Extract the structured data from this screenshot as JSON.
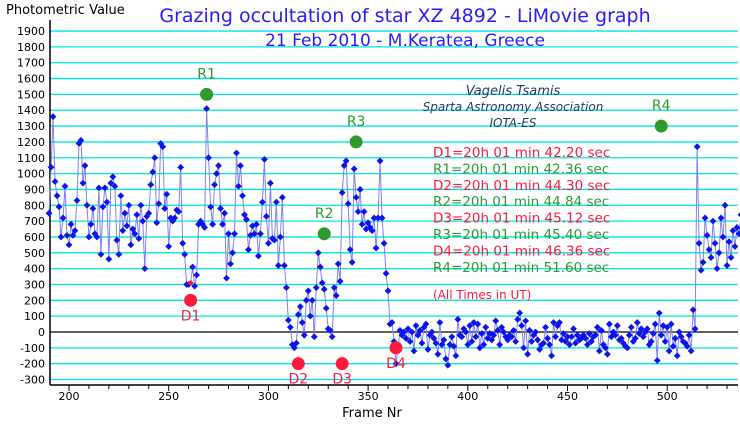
{
  "chart_data": {
    "type": "scatter",
    "title": "Grazing occultation of star XZ 4892 - LiMovie graph",
    "subtitle": "21 Feb 2010 - M.Keratea, Greece",
    "xlabel": "Frame Nr",
    "ylabel": "Photometric Value",
    "xlim": [
      190,
      534
    ],
    "ylim": [
      -330,
      1950
    ],
    "yticks": [
      -300,
      -200,
      -100,
      0,
      100,
      200,
      300,
      400,
      500,
      600,
      700,
      800,
      900,
      1000,
      1100,
      1200,
      1300,
      1400,
      1500,
      1600,
      1700,
      1800,
      1900
    ],
    "xticks": [
      200,
      250,
      300,
      350,
      400,
      450,
      500
    ],
    "grid": true,
    "x_start": 190,
    "values": [
      750,
      1040,
      1360,
      950,
      860,
      790,
      600,
      720,
      920,
      610,
      550,
      680,
      610,
      640,
      830,
      1190,
      1210,
      940,
      1050,
      800,
      600,
      680,
      780,
      620,
      600,
      910,
      490,
      790,
      910,
      820,
      460,
      940,
      980,
      920,
      580,
      490,
      860,
      640,
      750,
      670,
      800,
      550,
      650,
      620,
      740,
      590,
      800,
      700,
      400,
      730,
      750,
      930,
      1010,
      1100,
      690,
      810,
      1190,
      1170,
      780,
      870,
      540,
      720,
      700,
      720,
      770,
      760,
      1040,
      560,
      490,
      300,
      300,
      310,
      410,
      290,
      360,
      680,
      700,
      680,
      660,
      1410,
      1100,
      790,
      680,
      930,
      1000,
      1050,
      780,
      680,
      750,
      340,
      620,
      430,
      500,
      620,
      1130,
      920,
      1050,
      860,
      740,
      710,
      520,
      610,
      670,
      620,
      680,
      480,
      620,
      820,
      1090,
      730,
      560,
      940,
      590,
      580,
      820,
      420,
      600,
      850,
      420,
      280,
      75,
      30,
      -80,
      -100,
      -70,
      110,
      160,
      60,
      -20,
      200,
      260,
      100,
      200,
      -30,
      280,
      500,
      410,
      310,
      270,
      150,
      20,
      10,
      -30,
      280,
      230,
      430,
      320,
      880,
      1050,
      1080,
      810,
      520,
      440,
      1030,
      850,
      760,
      900,
      680,
      760,
      650,
      690,
      660,
      640,
      720,
      530,
      720,
      1080,
      720,
      560,
      370,
      260,
      50,
      60,
      -60,
      -200,
      -100,
      10,
      -20,
      0,
      -40,
      20,
      -60,
      0,
      -120,
      40,
      -20,
      10,
      -70,
      30,
      50,
      -110,
      -20,
      0,
      -40,
      -70,
      -140,
      60,
      -80,
      -50,
      -170,
      -210,
      -80,
      -30,
      -90,
      -150,
      80,
      -20,
      -30,
      20,
      0,
      -80,
      40,
      -60,
      60,
      -30,
      50,
      -100,
      -10,
      -80,
      30,
      -40,
      -10,
      -50,
      -20,
      70,
      10,
      -80,
      30,
      0,
      -30,
      -50,
      -20,
      -30,
      10,
      -60,
      80,
      120,
      40,
      -100,
      70,
      -140,
      10,
      -60,
      -20,
      0,
      -50,
      -110,
      -80,
      -70,
      30,
      -40,
      -80,
      -150,
      60,
      -30,
      40,
      60,
      -50,
      -10,
      -60,
      -30,
      -80,
      -30,
      20,
      -70,
      -20,
      -50,
      -40,
      -20,
      -40,
      -80,
      -10,
      -60,
      -30,
      -20,
      30,
      -120,
      10,
      -80,
      -100,
      -140,
      50,
      -30,
      0,
      -20,
      40,
      -50,
      -40,
      -70,
      -90,
      -100,
      -20,
      30,
      -60,
      -40,
      60,
      -10,
      20,
      -30,
      0,
      20,
      -80,
      -60,
      -10,
      50,
      -180,
      120,
      -20,
      40,
      -60,
      30,
      -120,
      50,
      -90,
      -40,
      -150,
      0,
      -30,
      -60,
      -70,
      -90,
      -20,
      -120,
      140,
      20,
      1170,
      560,
      390,
      440,
      720,
      610,
      520,
      470,
      700,
      560,
      400,
      500,
      720,
      600,
      800,
      420,
      570,
      470,
      640,
      540,
      660,
      620,
      740,
      680,
      580,
      500,
      1000,
      900,
      690,
      580,
      700,
      780,
      760
    ]
  },
  "events": [
    {
      "label": "D1",
      "frame": 261,
      "value": 200,
      "color": "#ff1a3c"
    },
    {
      "label": "R1",
      "frame": 269,
      "value": 1500,
      "color": "#2e9a2e"
    },
    {
      "label": "D2",
      "frame": 315,
      "value": -200,
      "color": "#ff1a3c"
    },
    {
      "label": "R2",
      "frame": 328,
      "value": 620,
      "color": "#2e9a2e"
    },
    {
      "label": "D3",
      "frame": 337,
      "value": -200,
      "color": "#ff1a3c"
    },
    {
      "label": "R3",
      "frame": 344,
      "value": 1200,
      "color": "#2e9a2e"
    },
    {
      "label": "D4",
      "frame": 364,
      "value": -100,
      "color": "#ff1a3c"
    },
    {
      "label": "R4",
      "frame": 497,
      "value": 1300,
      "color": "#2e9a2e"
    }
  ],
  "credits": [
    "Vagelis Tsamis",
    "Sparta Astronomy Association",
    "IOTA-ES"
  ],
  "times": [
    {
      "text": "D1=20h 01 min 42.20 sec",
      "color": "#ff1a3c"
    },
    {
      "text": "R1=20h 01 min 42.36 sec",
      "color": "#2e9a2e"
    },
    {
      "text": "D2=20h 01 min 44.30 sec",
      "color": "#ff1a3c"
    },
    {
      "text": "R2=20h 01 min 44.84 sec",
      "color": "#2e9a2e"
    },
    {
      "text": "D3=20h 01 min 45.12 sec",
      "color": "#ff1a3c"
    },
    {
      "text": "R3=20h 01 min 45.40 sec",
      "color": "#2e9a2e"
    },
    {
      "text": "D4=20h 01 min 46.36 sec",
      "color": "#ff1a3c"
    },
    {
      "text": "R4=20h 01 min 51.60 sec",
      "color": "#2e9a2e"
    }
  ],
  "times_note": "(All Times in UT)",
  "colors": {
    "grid": "#00e5e5",
    "line": "#8080f0",
    "point": "#0a14f0",
    "axis": "#000000",
    "red_point": "#ff1a1a"
  },
  "highlight_frame": 261
}
